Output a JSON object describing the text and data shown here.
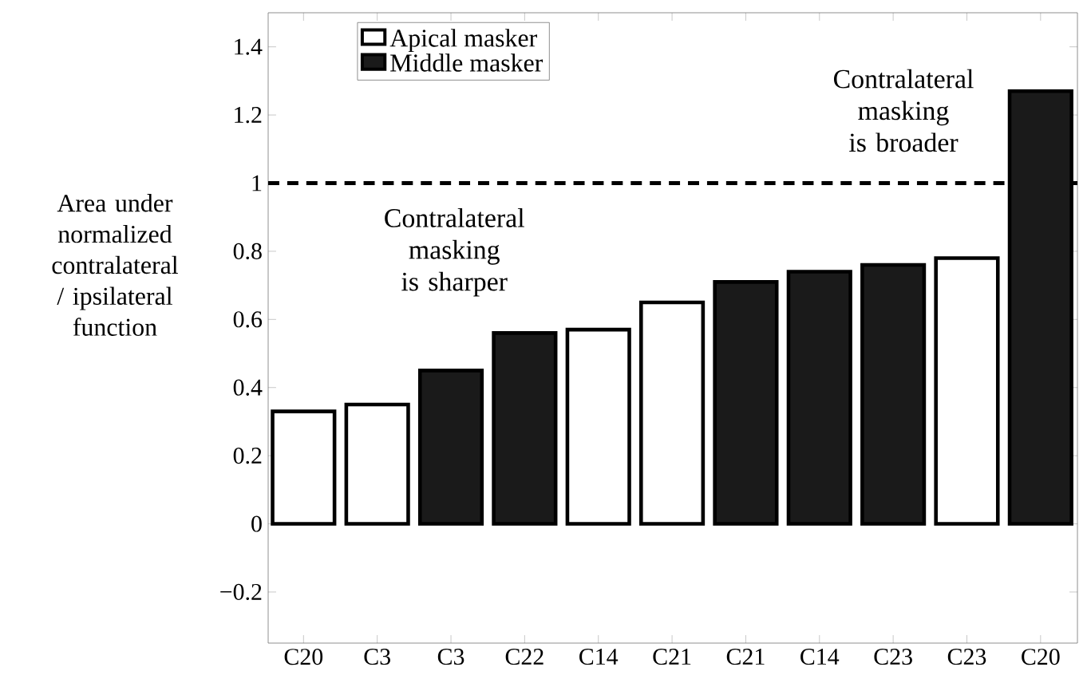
{
  "chart_data": {
    "type": "bar",
    "ylabel": "Area under normalized contralateral / ipsilateral function",
    "categories": [
      "C20",
      "C3",
      "C3",
      "C22",
      "C14",
      "C21",
      "C21",
      "C14",
      "C23",
      "C23",
      "C20"
    ],
    "series": [
      {
        "name": "Apical masker",
        "color": "#ffffff",
        "values": [
          0.33,
          0.35,
          null,
          null,
          0.57,
          0.65,
          null,
          null,
          null,
          0.78,
          null
        ]
      },
      {
        "name": "Middle masker",
        "color": "#1a1a1a",
        "values": [
          null,
          null,
          0.45,
          0.56,
          null,
          null,
          0.71,
          0.74,
          0.76,
          null,
          1.27
        ]
      }
    ],
    "ylim": [
      -0.35,
      1.5
    ],
    "yticks": [
      {
        "value": -0.2,
        "label": "−0.2"
      },
      0,
      0.2,
      0.4,
      0.6,
      0.8,
      1,
      1.2,
      1.4
    ],
    "ref_lines": [
      {
        "axis": "y",
        "value": 1,
        "line_style": "dashed"
      }
    ],
    "annotations": [
      "Contralateral masking is sharper",
      "Contralateral masking is broader"
    ],
    "legend": "top left",
    "grid": false
  }
}
